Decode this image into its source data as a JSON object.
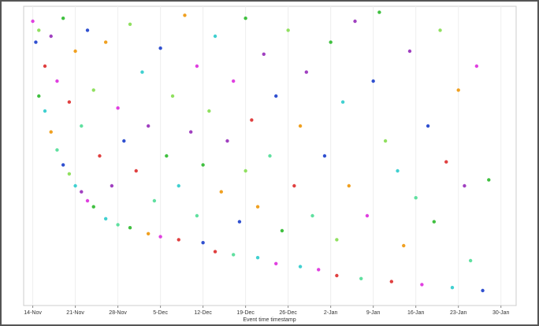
{
  "chart_data": {
    "type": "scatter",
    "x_label": "Event time timestamp",
    "xlim": [
      -1.5,
      79.5
    ],
    "ylim": [
      0,
      100
    ],
    "xticks": [
      {
        "value": 0,
        "label": "14-Nov"
      },
      {
        "value": 7,
        "label": "21-Nov"
      },
      {
        "value": 14,
        "label": "28-Nov"
      },
      {
        "value": 21,
        "label": "5-Dec"
      },
      {
        "value": 28,
        "label": "12-Dec"
      },
      {
        "value": 35,
        "label": "19-Dec"
      },
      {
        "value": 42,
        "label": "26-Dec"
      },
      {
        "value": 49,
        "label": "2-Jan"
      },
      {
        "value": 56,
        "label": "9-Jan"
      },
      {
        "value": 63,
        "label": "16-Jan"
      },
      {
        "value": 70,
        "label": "23-Jan"
      },
      {
        "value": 77,
        "label": "30-Jan"
      }
    ],
    "grid": true,
    "x": [
      0,
      0.5,
      1,
      1,
      2,
      2,
      3,
      3,
      4,
      4,
      5,
      5,
      6,
      6,
      7,
      7,
      8,
      8,
      9,
      9,
      10,
      10,
      11,
      12,
      12,
      13,
      14,
      14,
      15,
      16,
      16,
      17,
      18,
      19,
      19,
      20,
      21,
      21,
      22,
      23,
      24,
      24,
      25,
      26,
      27,
      27,
      28,
      28,
      29,
      30,
      30,
      31,
      32,
      33,
      33,
      34,
      35,
      35,
      36,
      37,
      37,
      38,
      39,
      40,
      40,
      41,
      42,
      43,
      44,
      44,
      45,
      46,
      47,
      48,
      49,
      50,
      50,
      51,
      52,
      53,
      54,
      55,
      56,
      57,
      58,
      59,
      60,
      61,
      62,
      63,
      64,
      65,
      66,
      67,
      68,
      69,
      70,
      71,
      72,
      73,
      74,
      75
    ],
    "y": [
      95,
      88,
      70,
      92,
      80,
      65,
      58,
      90,
      52,
      75,
      47,
      96,
      44,
      68,
      40,
      85,
      38,
      60,
      35,
      92,
      33,
      72,
      50,
      29,
      88,
      40,
      27,
      66,
      55,
      26,
      94,
      45,
      78,
      24,
      60,
      35,
      23,
      86,
      50,
      70,
      22,
      40,
      97,
      58,
      30,
      80,
      21,
      47,
      65,
      18,
      90,
      38,
      55,
      17,
      75,
      28,
      96,
      45,
      62,
      16,
      33,
      84,
      50,
      14,
      70,
      25,
      92,
      40,
      13,
      60,
      78,
      30,
      12,
      50,
      88,
      22,
      10,
      68,
      40,
      95,
      9,
      30,
      75,
      98,
      55,
      8,
      45,
      20,
      85,
      36,
      7,
      60,
      28,
      92,
      48,
      6,
      72,
      40,
      15,
      80,
      5,
      42
    ],
    "colors": [
      "#e040e0",
      "#3050d0",
      "#40c040",
      "#90e060",
      "#e04040",
      "#40d0d0",
      "#f0a020",
      "#a040c0",
      "#60e0a0",
      "#e040e0",
      "#3050d0",
      "#40c040",
      "#90e060",
      "#e04040",
      "#40d0d0",
      "#f0a020",
      "#a040c0",
      "#60e0a0",
      "#e040e0",
      "#3050d0",
      "#40c040",
      "#90e060",
      "#e04040",
      "#40d0d0",
      "#f0a020",
      "#a040c0",
      "#60e0a0",
      "#e040e0",
      "#3050d0",
      "#40c040",
      "#90e060",
      "#e04040",
      "#40d0d0",
      "#f0a020",
      "#a040c0",
      "#60e0a0",
      "#e040e0",
      "#3050d0",
      "#40c040",
      "#90e060",
      "#e04040",
      "#40d0d0",
      "#f0a020",
      "#a040c0",
      "#60e0a0",
      "#e040e0",
      "#3050d0",
      "#40c040",
      "#90e060",
      "#e04040",
      "#40d0d0",
      "#f0a020",
      "#a040c0",
      "#60e0a0",
      "#e040e0",
      "#3050d0",
      "#40c040",
      "#90e060",
      "#e04040",
      "#40d0d0",
      "#f0a020",
      "#a040c0",
      "#60e0a0",
      "#e040e0",
      "#3050d0",
      "#40c040",
      "#90e060",
      "#e04040",
      "#40d0d0",
      "#f0a020",
      "#a040c0",
      "#60e0a0",
      "#e040e0",
      "#3050d0",
      "#40c040",
      "#90e060",
      "#e04040",
      "#40d0d0",
      "#f0a020",
      "#a040c0",
      "#60e0a0",
      "#e040e0",
      "#3050d0",
      "#40c040",
      "#90e060",
      "#e04040",
      "#40d0d0",
      "#f0a020",
      "#a040c0",
      "#60e0a0",
      "#e040e0",
      "#3050d0",
      "#40c040",
      "#90e060",
      "#e04040",
      "#40d0d0",
      "#f0a020",
      "#a040c0",
      "#60e0a0",
      "#e040e0",
      "#3050d0",
      "#40c040"
    ]
  }
}
